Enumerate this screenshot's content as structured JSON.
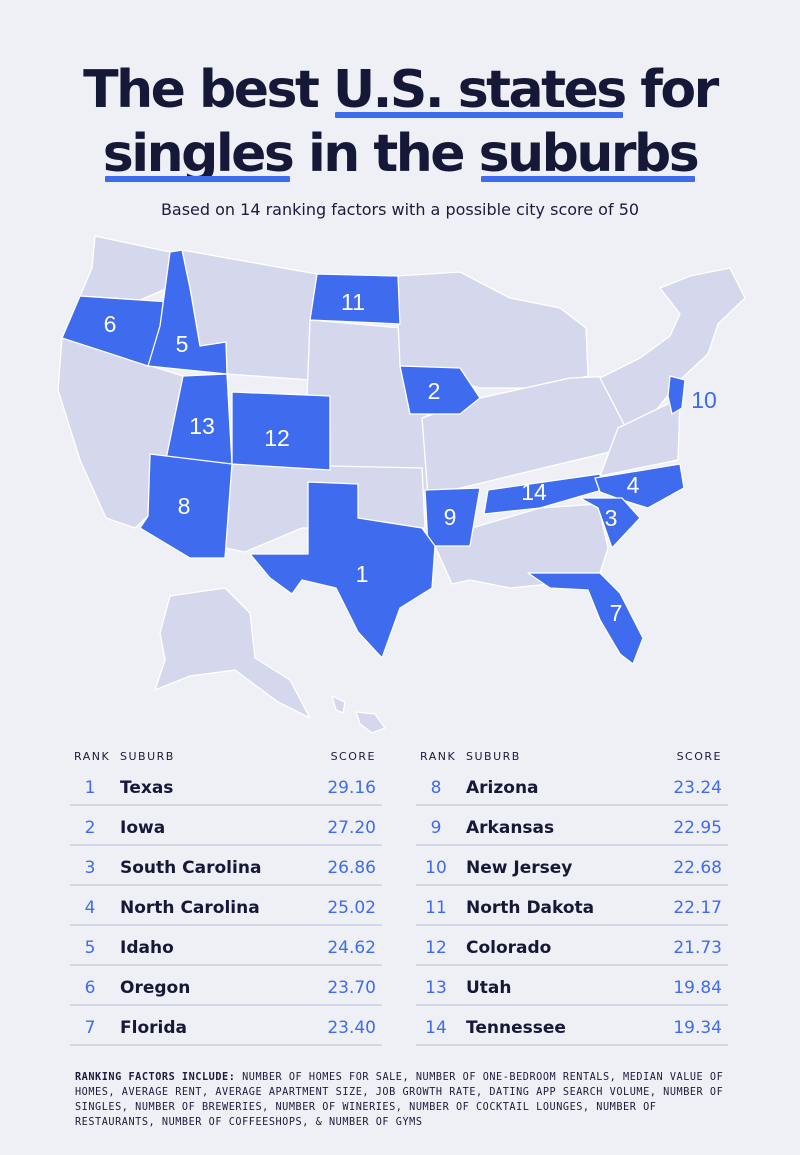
{
  "title": {
    "part1": "The best ",
    "part2": "U.S. states",
    "part3": " for",
    "part4": "singles",
    "part5": " in the ",
    "part6": "suburbs"
  },
  "subtitle": "Based on 14 ranking factors with a possible city score of 50",
  "map": {
    "colors": {
      "base": "#d5d8ec",
      "highlight": "#3f6cef",
      "border": "#ffffff"
    },
    "labels": [
      {
        "state": "Oregon",
        "rank": "6"
      },
      {
        "state": "Idaho",
        "rank": "5"
      },
      {
        "state": "North Dakota",
        "rank": "11"
      },
      {
        "state": "Iowa",
        "rank": "2"
      },
      {
        "state": "New Jersey",
        "rank": "10"
      },
      {
        "state": "Utah",
        "rank": "13"
      },
      {
        "state": "Colorado",
        "rank": "12"
      },
      {
        "state": "Arizona",
        "rank": "8"
      },
      {
        "state": "Arkansas",
        "rank": "9"
      },
      {
        "state": "Tennessee",
        "rank": "14"
      },
      {
        "state": "North Carolina",
        "rank": "4"
      },
      {
        "state": "South Carolina",
        "rank": "3"
      },
      {
        "state": "Texas",
        "rank": "1"
      },
      {
        "state": "Florida",
        "rank": "7"
      }
    ]
  },
  "table": {
    "headers": {
      "rank": "RANK",
      "suburb": "SUBURB",
      "score": "SCORE"
    },
    "left": [
      {
        "rank": "1",
        "suburb": "Texas",
        "score": "29.16"
      },
      {
        "rank": "2",
        "suburb": "Iowa",
        "score": "27.20"
      },
      {
        "rank": "3",
        "suburb": "South Carolina",
        "score": "26.86"
      },
      {
        "rank": "4",
        "suburb": "North Carolina",
        "score": "25.02"
      },
      {
        "rank": "5",
        "suburb": "Idaho",
        "score": "24.62"
      },
      {
        "rank": "6",
        "suburb": "Oregon",
        "score": "23.70"
      },
      {
        "rank": "7",
        "suburb": "Florida",
        "score": "23.40"
      }
    ],
    "right": [
      {
        "rank": "8",
        "suburb": "Arizona",
        "score": "23.24"
      },
      {
        "rank": "9",
        "suburb": "Arkansas",
        "score": "22.95"
      },
      {
        "rank": "10",
        "suburb": "New Jersey",
        "score": "22.68"
      },
      {
        "rank": "11",
        "suburb": "North Dakota",
        "score": "22.17"
      },
      {
        "rank": "12",
        "suburb": "Colorado",
        "score": "21.73"
      },
      {
        "rank": "13",
        "suburb": "Utah",
        "score": "19.84"
      },
      {
        "rank": "14",
        "suburb": "Tennessee",
        "score": "19.34"
      }
    ]
  },
  "footnote": {
    "label": "Ranking factors include:",
    "text": " number of homes for sale, number of one-bedroom rentals, median value of homes, average rent, average apartment size, job growth rate, dating app search volume, number of singles, number of breweries, number of wineries, number of cocktail lounges, number of restaurants, number of coffeeshops, & number of gyms"
  }
}
